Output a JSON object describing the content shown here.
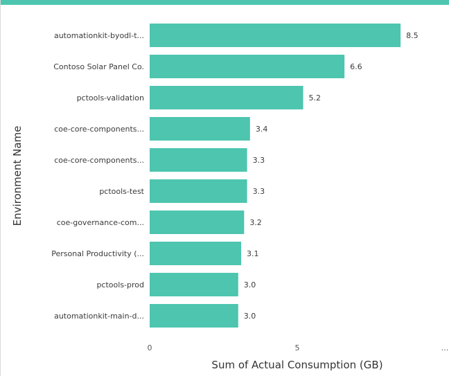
{
  "chart_data": {
    "type": "bar",
    "orientation": "horizontal",
    "xlabel": "Sum of Actual Consumption (GB)",
    "ylabel": "Environment Name",
    "categories": [
      "automationkit-byodl-t...",
      "Contoso Solar Panel Co.",
      "pctools-validation",
      "coe-core-components...",
      "coe-core-components...",
      "pctools-test",
      "coe-governance-com...",
      "Personal Productivity (...",
      "pctools-prod",
      "automationkit-main-d..."
    ],
    "values": [
      8.5,
      6.6,
      5.2,
      3.4,
      3.3,
      3.3,
      3.2,
      3.1,
      3.0,
      3.0
    ],
    "value_labels": [
      "8.5",
      "6.6",
      "5.2",
      "3.4",
      "3.3",
      "3.3",
      "3.2",
      "3.1",
      "3.0",
      "3.0"
    ],
    "xticks": [
      "0",
      "5",
      "..."
    ],
    "xlim": [
      0,
      10
    ],
    "grid": false,
    "bar_color": "#4DC5AF",
    "header_color": "#4DC5AF"
  }
}
